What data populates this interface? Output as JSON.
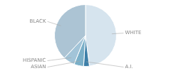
{
  "chart_data": {
    "type": "pie",
    "categories": [
      "WHITE",
      "A.I.",
      "ASIAN",
      "HISPANIC",
      "BLACK"
    ],
    "values": [
      48,
      3,
      5,
      6,
      38
    ],
    "colors": [
      "#d6e4ee",
      "#3d7fa8",
      "#7aafc8",
      "#a2c4d8",
      "#acc4d4"
    ]
  }
}
